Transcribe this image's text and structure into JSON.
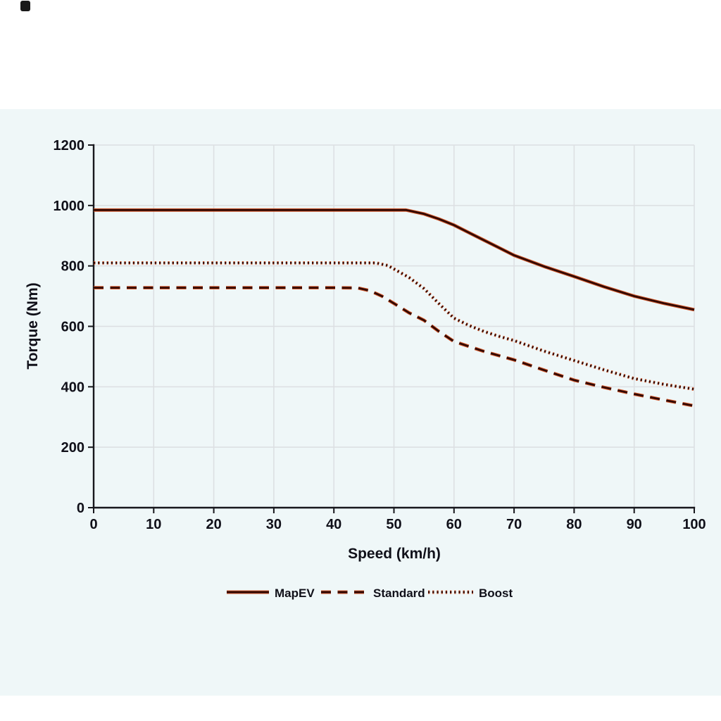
{
  "page": {
    "background": "#ffffff",
    "panel_background": "#eff7f8"
  },
  "top_left_artifact": {
    "color": "#1a1a1a"
  },
  "chart_data": {
    "type": "line",
    "title": "",
    "xlabel": "Speed (km/h)",
    "ylabel": "Torque (Nm)",
    "xlim": [
      0,
      100
    ],
    "ylim": [
      0,
      1200
    ],
    "xticks": [
      0,
      10,
      20,
      30,
      40,
      50,
      60,
      70,
      80,
      90,
      100
    ],
    "yticks": [
      0,
      200,
      400,
      600,
      800,
      1000,
      1200
    ],
    "grid": true,
    "legend_position": "bottom-center",
    "line_color": "#310800",
    "line_halo_color": "#d14a1a",
    "text_color": "#101019",
    "gridline_color": "#dcdfe2",
    "series": [
      {
        "name": "MapEV",
        "style": "solid",
        "points": [
          [
            0,
            985
          ],
          [
            10,
            985
          ],
          [
            20,
            985
          ],
          [
            30,
            985
          ],
          [
            40,
            985
          ],
          [
            50,
            985
          ],
          [
            52,
            985
          ],
          [
            55,
            972
          ],
          [
            57.5,
            955
          ],
          [
            60,
            935
          ],
          [
            62.5,
            910
          ],
          [
            65,
            885
          ],
          [
            67.5,
            860
          ],
          [
            70,
            835
          ],
          [
            75,
            798
          ],
          [
            80,
            765
          ],
          [
            85,
            731
          ],
          [
            90,
            700
          ],
          [
            95,
            676
          ],
          [
            100,
            655
          ]
        ]
      },
      {
        "name": "Standard",
        "style": "dashed",
        "points": [
          [
            0,
            728
          ],
          [
            10,
            728
          ],
          [
            20,
            728
          ],
          [
            30,
            728
          ],
          [
            40,
            728
          ],
          [
            44,
            727
          ],
          [
            46,
            718
          ],
          [
            48,
            700
          ],
          [
            50,
            676
          ],
          [
            52.5,
            645
          ],
          [
            55,
            620
          ],
          [
            57.5,
            583
          ],
          [
            60,
            550
          ],
          [
            65,
            517
          ],
          [
            70,
            489
          ],
          [
            75,
            455
          ],
          [
            80,
            422
          ],
          [
            85,
            398
          ],
          [
            90,
            376
          ],
          [
            95,
            356
          ],
          [
            100,
            337
          ]
        ]
      },
      {
        "name": "Boost",
        "style": "dotted",
        "points": [
          [
            0,
            810
          ],
          [
            10,
            810
          ],
          [
            20,
            810
          ],
          [
            30,
            810
          ],
          [
            40,
            810
          ],
          [
            47,
            810
          ],
          [
            49,
            801
          ],
          [
            50,
            790
          ],
          [
            52.5,
            762
          ],
          [
            55,
            725
          ],
          [
            57.5,
            675
          ],
          [
            60,
            627
          ],
          [
            62.5,
            603
          ],
          [
            65,
            583
          ],
          [
            67.5,
            567
          ],
          [
            70,
            553
          ],
          [
            75,
            518
          ],
          [
            80,
            487
          ],
          [
            85,
            456
          ],
          [
            90,
            427
          ],
          [
            95,
            408
          ],
          [
            100,
            392
          ]
        ]
      }
    ]
  }
}
